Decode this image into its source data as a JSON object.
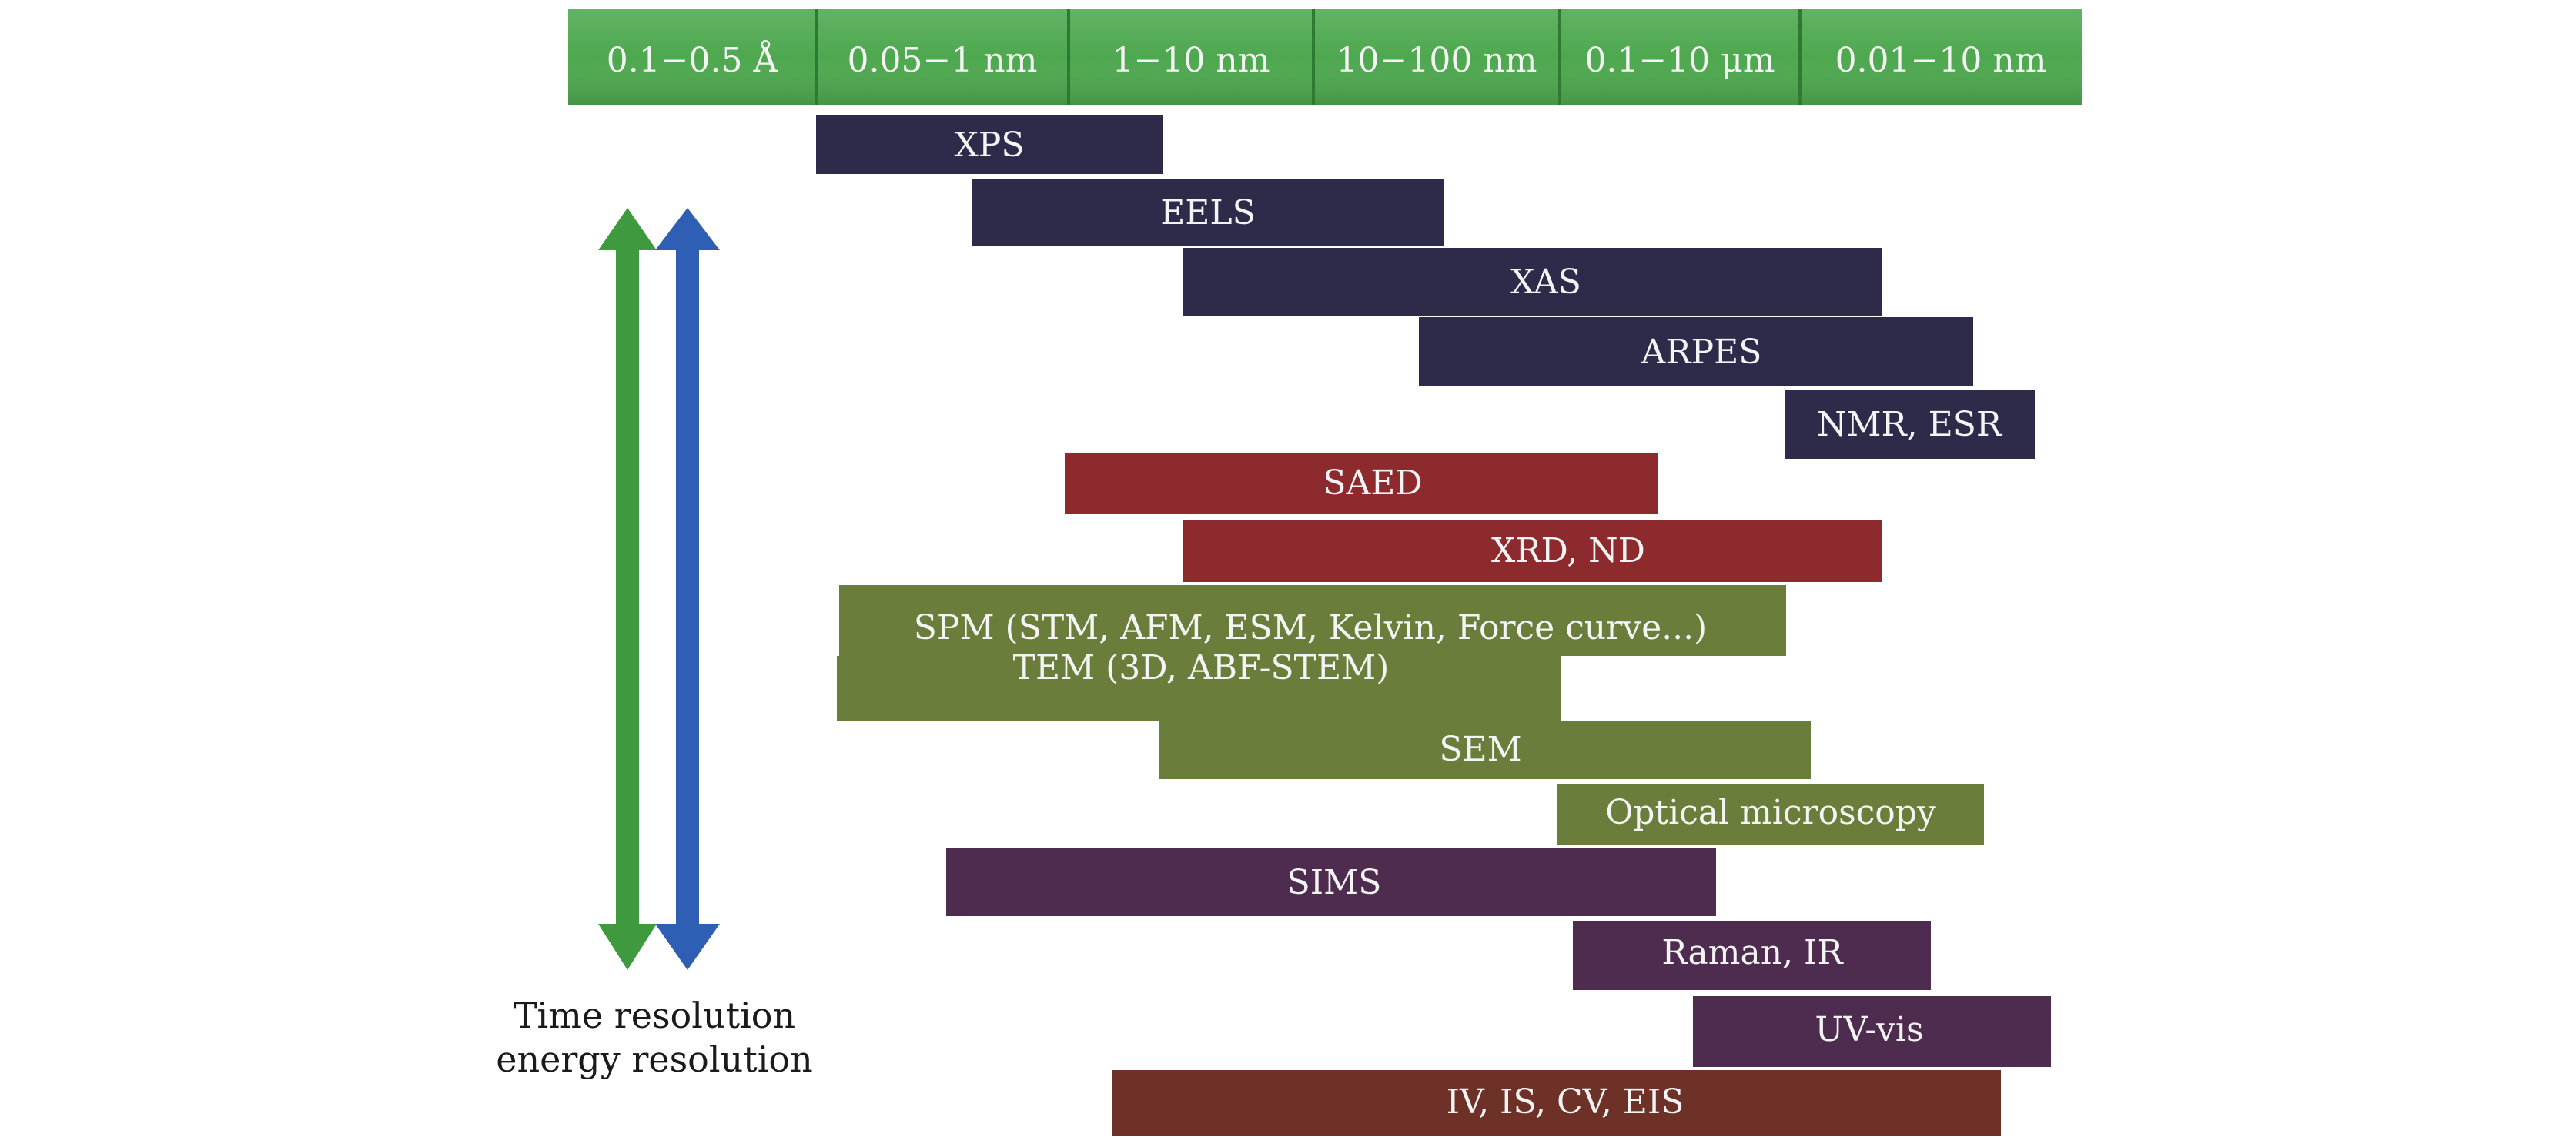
{
  "scale_bar": {
    "color": "#4ea84f",
    "segments": [
      "0.1−0.5 Å",
      "0.05−1 nm",
      "1−10 nm",
      "10−100 nm",
      "0.1−10 μm",
      "0.01−10 nm"
    ]
  },
  "arrows": {
    "green_color": "#3f9a3f",
    "blue_color": "#2f5fb5",
    "caption_line1": "Time resolution",
    "caption_line2": "energy resolution"
  },
  "techniques": [
    {
      "label": "XPS",
      "color": "#2d2a4a"
    },
    {
      "label": "EELS",
      "color": "#2d2a4a"
    },
    {
      "label": "XAS",
      "color": "#2d2a4a"
    },
    {
      "label": "ARPES",
      "color": "#2d2a4a"
    },
    {
      "label": "NMR, ESR",
      "color": "#2d2a4a"
    },
    {
      "label": "SAED",
      "color": "#8c2a2e"
    },
    {
      "label": "XRD, ND",
      "color": "#8c2a2e"
    },
    {
      "label": "SPM (STM, AFM, ESM, Kelvin, Force curve...)",
      "color": "#6b7d3a"
    },
    {
      "label": "TEM (3D, ABF-STEM)",
      "color": "#6b7d3a"
    },
    {
      "label": "SEM",
      "color": "#6b7d3a"
    },
    {
      "label": "Optical microscopy",
      "color": "#6b7d3a"
    },
    {
      "label": "SIMS",
      "color": "#4e2c4f"
    },
    {
      "label": "Raman, IR",
      "color": "#4e2c4f"
    },
    {
      "label": "UV-vis",
      "color": "#4e2c4f"
    },
    {
      "label": "IV, IS, CV, EIS",
      "color": "#6e3128"
    }
  ]
}
